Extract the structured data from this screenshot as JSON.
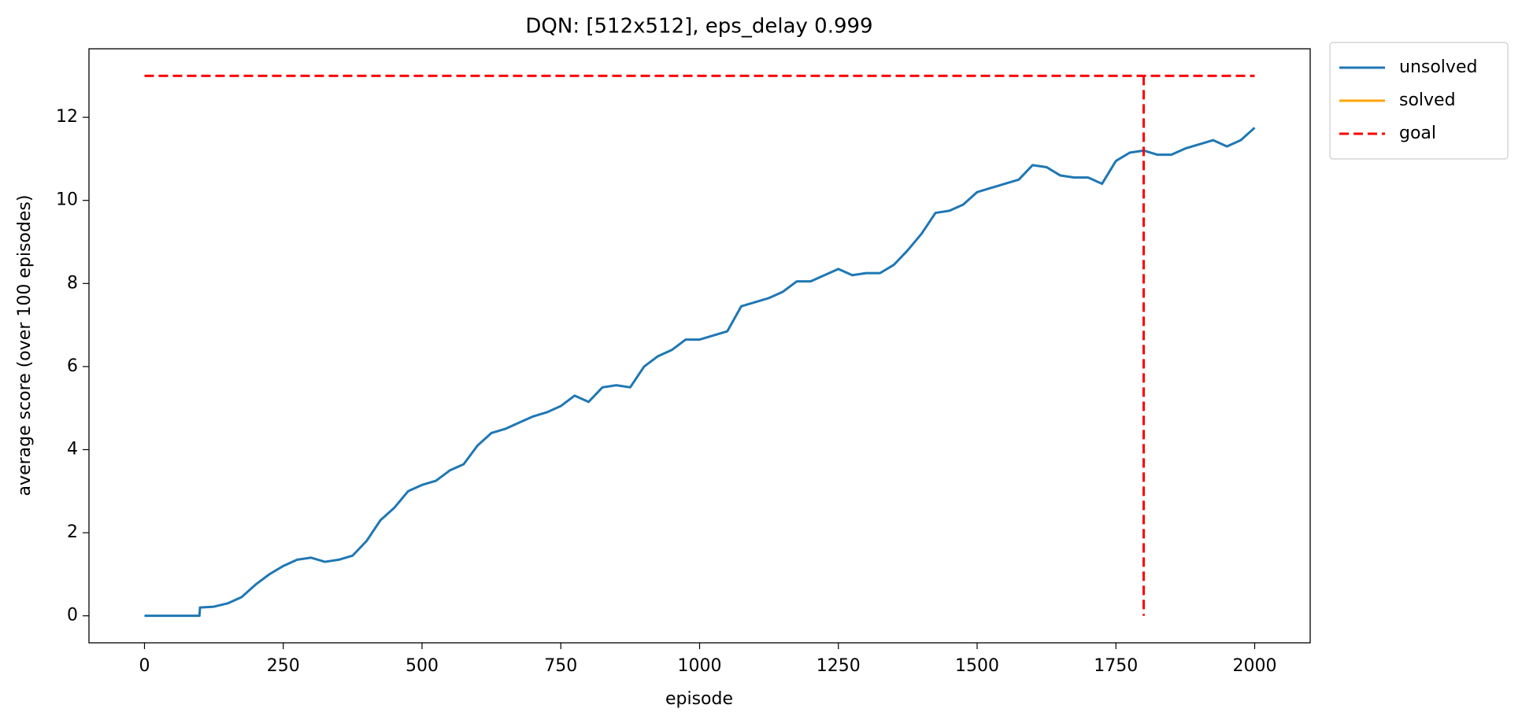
{
  "chart_data": {
    "type": "line",
    "title": "DQN: [512x512], eps_delay 0.999",
    "xlabel": "episode",
    "ylabel": "average score (over 100 episodes)",
    "xlim": [
      -100,
      2100
    ],
    "ylim": [
      -0.65,
      13.65
    ],
    "xticks": [
      0,
      250,
      500,
      750,
      1000,
      1250,
      1500,
      1750,
      2000
    ],
    "yticks": [
      0,
      2,
      4,
      6,
      8,
      10,
      12
    ],
    "grid": false,
    "legend": "outside upper right",
    "series": [
      {
        "name": "unsolved",
        "color": "#1f77b4",
        "linestyle": "solid",
        "x": [
          0,
          25,
          50,
          75,
          99,
          100,
          125,
          150,
          175,
          200,
          225,
          250,
          275,
          300,
          325,
          350,
          375,
          400,
          425,
          450,
          475,
          500,
          525,
          550,
          575,
          600,
          625,
          650,
          675,
          700,
          725,
          750,
          775,
          800,
          825,
          850,
          875,
          900,
          925,
          950,
          975,
          1000,
          1025,
          1050,
          1075,
          1100,
          1125,
          1150,
          1175,
          1200,
          1225,
          1250,
          1275,
          1300,
          1325,
          1350,
          1375,
          1400,
          1425,
          1450,
          1475,
          1500,
          1525,
          1550,
          1575,
          1600,
          1625,
          1650,
          1675,
          1700,
          1725,
          1750,
          1775,
          1800,
          1825,
          1850,
          1875,
          1900,
          1925,
          1950,
          1975,
          2000
        ],
        "values": [
          0,
          0,
          0,
          0,
          0,
          0.2,
          0.22,
          0.3,
          0.45,
          0.75,
          1.0,
          1.2,
          1.35,
          1.4,
          1.3,
          1.35,
          1.45,
          1.8,
          2.3,
          2.6,
          3.0,
          3.15,
          3.25,
          3.5,
          3.65,
          4.1,
          4.4,
          4.5,
          4.65,
          4.8,
          4.9,
          5.05,
          5.3,
          5.15,
          5.5,
          5.55,
          5.5,
          6.0,
          6.25,
          6.4,
          6.65,
          6.65,
          6.75,
          6.85,
          7.45,
          7.55,
          7.65,
          7.8,
          8.05,
          8.05,
          8.2,
          8.35,
          8.2,
          8.25,
          8.25,
          8.45,
          8.8,
          9.2,
          9.7,
          9.75,
          9.9,
          10.2,
          10.3,
          10.4,
          10.5,
          10.85,
          10.8,
          10.6,
          10.55,
          10.55,
          10.4,
          10.95,
          11.15,
          11.2,
          11.1,
          11.1,
          11.25,
          11.35,
          11.45,
          11.3,
          11.45,
          11.75
        ]
      },
      {
        "name": "solved",
        "color": "#ffa500",
        "linestyle": "solid",
        "x": [],
        "values": []
      },
      {
        "name": "goal",
        "color": "#ff0000",
        "linestyle": "dashed",
        "x": [
          0,
          2000,
          2000,
          1800,
          1800
        ],
        "values": [
          13,
          13,
          null,
          13,
          0
        ]
      }
    ]
  }
}
